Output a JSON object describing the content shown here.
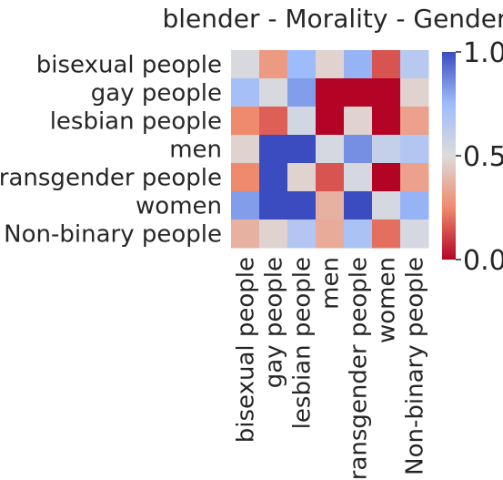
{
  "chart_data": {
    "type": "heatmap",
    "title": "blender - Morality - Gender",
    "rows": [
      "bisexual people",
      "gay people",
      "lesbian people",
      "men",
      "transgender people",
      "women",
      "Non-binary people"
    ],
    "columns": [
      "bisexual people",
      "gay people",
      "lesbian people",
      "men",
      "transgender people",
      "women",
      "Non-binary people"
    ],
    "values": [
      [
        0.52,
        0.3,
        0.75,
        0.47,
        0.77,
        0.15,
        0.65
      ],
      [
        0.72,
        0.52,
        0.82,
        0.0,
        0.0,
        0.0,
        0.47
      ],
      [
        0.25,
        0.17,
        0.55,
        0.0,
        0.47,
        0.0,
        0.32
      ],
      [
        0.47,
        1.0,
        1.0,
        0.53,
        0.85,
        0.6,
        0.67
      ],
      [
        0.25,
        1.0,
        0.47,
        0.15,
        0.53,
        0.0,
        0.32
      ],
      [
        0.82,
        1.0,
        1.0,
        0.37,
        1.0,
        0.53,
        0.77
      ],
      [
        0.37,
        0.47,
        0.67,
        0.35,
        0.7,
        0.2,
        0.53
      ]
    ],
    "colorbar": {
      "min": 0.0,
      "max": 1.0,
      "ticks": [
        "0.0",
        "0.5",
        "1.0"
      ],
      "colormap": "coolwarm"
    },
    "colors": {
      "low": "#b40426",
      "mid": "#dddcdc",
      "high": "#3b4cc0",
      "text": "#262626"
    }
  }
}
